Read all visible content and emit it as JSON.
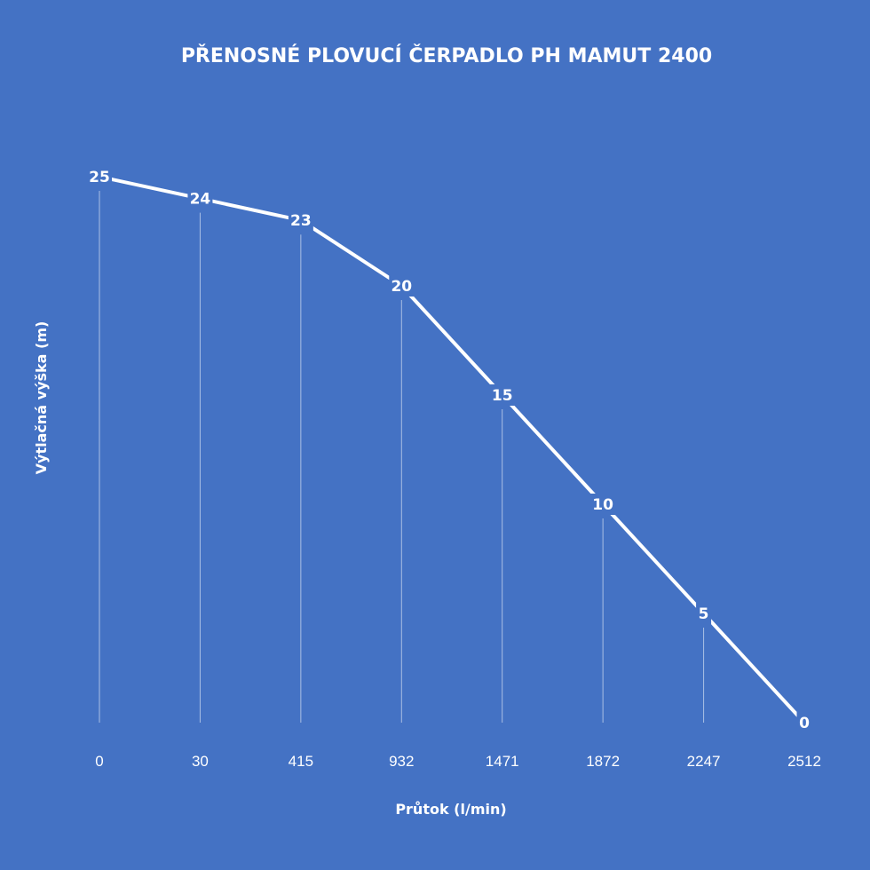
{
  "colors": {
    "background": "#4472C4",
    "line": "#FFFFFF",
    "text": "#FFFFFF"
  },
  "chart_data": {
    "type": "line",
    "title": "PŘENOSNÉ PLOVUCÍ ČERPADLO PH MAMUT 2400",
    "xlabel": "Průtok (l/min)",
    "ylabel": "Výtlačná výška (m)",
    "categories": [
      "0",
      "30",
      "415",
      "932",
      "1471",
      "1872",
      "2247",
      "2512"
    ],
    "series": [
      {
        "values": [
          25,
          24,
          23,
          20,
          15,
          10,
          5,
          0
        ]
      }
    ],
    "ylim": [
      0,
      25
    ],
    "data_labels": true,
    "drop_lines": true,
    "grid": false,
    "legend": "none"
  }
}
